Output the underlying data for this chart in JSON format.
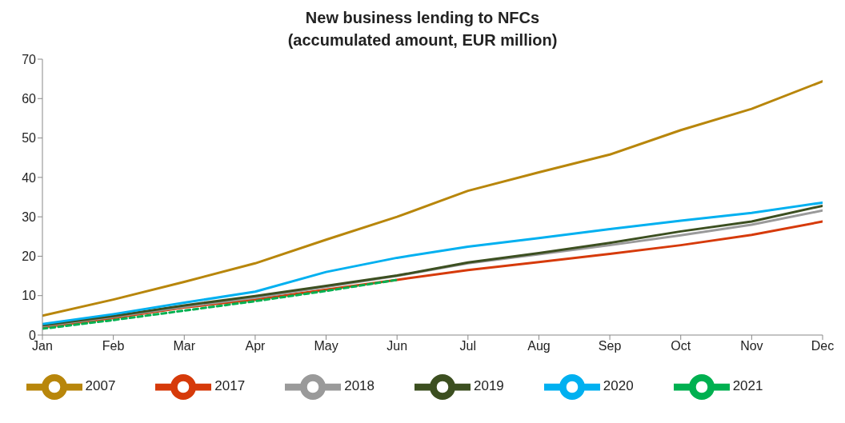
{
  "chart_data": {
    "type": "line",
    "title": "New business lending to NFCs\n(accumulated amount, EUR million)",
    "categories": [
      "Jan",
      "Feb",
      "Mar",
      "Apr",
      "May",
      "Jun",
      "Jul",
      "Aug",
      "Sep",
      "Oct",
      "Nov",
      "Dec"
    ],
    "ylim": [
      0,
      70
    ],
    "yticks": [
      0,
      10,
      20,
      30,
      40,
      50,
      60,
      70
    ],
    "grid": false,
    "legend": "bottom",
    "marker": "none",
    "series": [
      {
        "name": "2007",
        "color": "#b8860b",
        "values": [
          4.9,
          9.0,
          13.5,
          18.2,
          24.2,
          30.0,
          36.6,
          41.3,
          45.8,
          52.0,
          57.4,
          64.4
        ]
      },
      {
        "name": "2017",
        "color": "#d63a0a",
        "values": [
          2.0,
          4.3,
          7.0,
          9.0,
          11.5,
          14.0,
          16.5,
          18.5,
          20.6,
          22.8,
          25.4,
          28.8
        ]
      },
      {
        "name": "2018",
        "color": "#9a9a9a",
        "values": [
          2.3,
          4.6,
          7.2,
          9.5,
          12.2,
          15.0,
          18.2,
          20.5,
          22.8,
          25.3,
          28.0,
          31.6
        ]
      },
      {
        "name": "2019",
        "color": "#3c4f20",
        "values": [
          2.5,
          4.8,
          7.5,
          9.9,
          12.5,
          15.1,
          18.4,
          20.8,
          23.4,
          26.3,
          28.8,
          32.8
        ]
      },
      {
        "name": "2020",
        "color": "#00b0f0",
        "values": [
          2.8,
          5.3,
          8.2,
          11.0,
          16.0,
          19.6,
          22.4,
          24.6,
          26.9,
          29.0,
          31.0,
          33.6
        ]
      },
      {
        "name": "2021",
        "color": "#00b050",
        "line_style": "dashed",
        "values": [
          1.6,
          3.8,
          6.2,
          8.6,
          11.2,
          14.0,
          null,
          null,
          null,
          null,
          null,
          null
        ]
      }
    ]
  }
}
